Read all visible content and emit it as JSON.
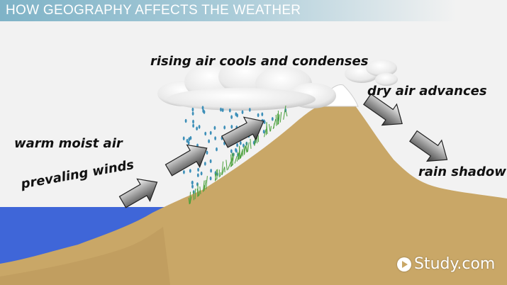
{
  "title": "HOW GEOGRAPHY AFFECTS THE WEATHER",
  "labels": {
    "rising_air": "rising air cools and condenses",
    "dry_air": "dry air advances",
    "warm_moist": "warm moist air",
    "prevailing": "prevaling winds",
    "rain_shadow": "rain shadow"
  },
  "logo": "Study.com",
  "colors": {
    "ground": "#c9a767",
    "ocean": "#3f66d8",
    "sky": "#f2f2f2",
    "rain": "#3d8fb8",
    "grass": "#4aa03a",
    "title_bar": "#8ab9cb"
  }
}
